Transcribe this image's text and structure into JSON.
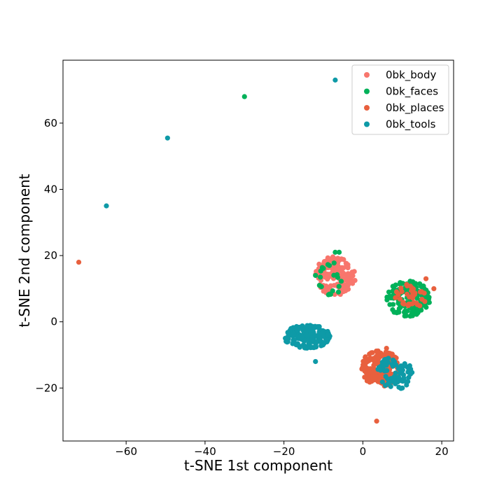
{
  "chart_data": {
    "type": "scatter",
    "title": "",
    "xlabel": "t-SNE 1st component",
    "ylabel": "t-SNE 2nd component",
    "xlim": [
      -76,
      23
    ],
    "ylim": [
      -36,
      79
    ],
    "xticks": [
      -60,
      -40,
      -20,
      0,
      20
    ],
    "yticks": [
      -20,
      0,
      20,
      40,
      60
    ],
    "xtick_labels": [
      "−60",
      "−40",
      "−20",
      "0",
      "20"
    ],
    "ytick_labels": [
      "−20",
      "0",
      "20",
      "40",
      "60"
    ],
    "grid": false,
    "legend_position": "top-right",
    "series": [
      {
        "name": "0bk_body",
        "color": "#f8766d",
        "clusters": [
          {
            "cx": -7,
            "cy": 14,
            "rx": 5,
            "ry": 6,
            "n": 170
          }
        ],
        "points": [
          [
            -3,
            12
          ],
          [
            -2,
            12.5
          ],
          [
            -10,
            11
          ],
          [
            -6,
            8.5
          ],
          [
            -11,
            15
          ]
        ]
      },
      {
        "name": "0bk_faces",
        "color": "#00b159",
        "clusters": [
          {
            "cx": 11.5,
            "cy": 7,
            "rx": 5.5,
            "ry": 5.5,
            "n": 160
          },
          {
            "cx": -8,
            "cy": 13,
            "rx": 3.5,
            "ry": 5,
            "n": 18
          }
        ],
        "points": [
          [
            -30,
            68
          ],
          [
            -7,
            21
          ],
          [
            -6,
            21
          ],
          [
            -11,
            11
          ],
          [
            -12,
            14
          ]
        ]
      },
      {
        "name": "0bk_places",
        "color": "#e8603e",
        "clusters": [
          {
            "cx": 4.5,
            "cy": -14,
            "rx": 5,
            "ry": 5.5,
            "n": 170
          },
          {
            "cx": 12,
            "cy": 7.5,
            "rx": 4,
            "ry": 4,
            "n": 35
          }
        ],
        "points": [
          [
            -72,
            18
          ],
          [
            3.5,
            -30
          ],
          [
            6,
            -8
          ],
          [
            16,
            13
          ],
          [
            18,
            10
          ]
        ]
      },
      {
        "name": "0bk_tools",
        "color": "#0e9aa7",
        "clusters": [
          {
            "cx": -14,
            "cy": -4.5,
            "rx": 6,
            "ry": 3.5,
            "n": 170
          },
          {
            "cx": 8,
            "cy": -15.5,
            "rx": 4.5,
            "ry": 5,
            "n": 80
          }
        ],
        "points": [
          [
            -7,
            73
          ],
          [
            -49.5,
            55.5
          ],
          [
            -65,
            35
          ],
          [
            -19,
            -6
          ],
          [
            -12,
            -12
          ],
          [
            10,
            -20
          ]
        ]
      }
    ]
  }
}
